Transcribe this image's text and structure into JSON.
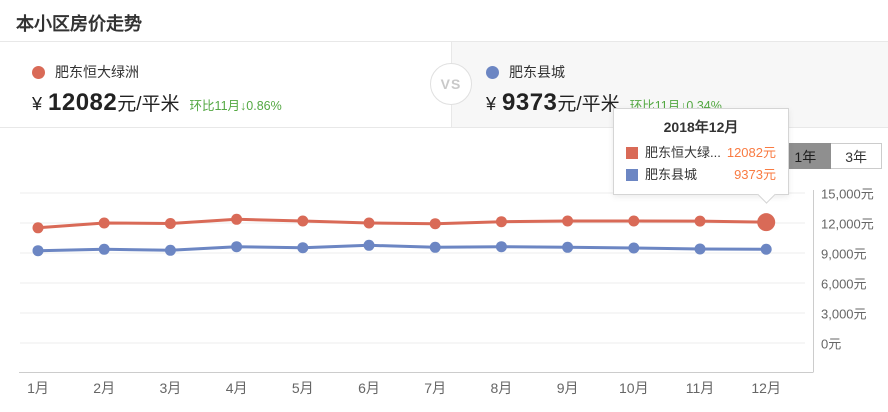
{
  "header": {
    "title": "本小区房价走势"
  },
  "compare": {
    "vs_label": "VS",
    "left": {
      "name": "肥东恒大绿洲",
      "currency": "¥",
      "price": "12082",
      "unit": "元/平米",
      "mom": "环比11月↓0.86%"
    },
    "right": {
      "name": "肥东县城",
      "currency": "¥",
      "price": "9373",
      "unit": "元/平米",
      "mom": "环比11月↓0.34%"
    }
  },
  "tabs": [
    {
      "key": "1y",
      "label": "1年",
      "selected": true
    },
    {
      "key": "3y",
      "label": "3年",
      "selected": false
    }
  ],
  "tooltip": {
    "title": "2018年12月",
    "rows": [
      {
        "label": "肥东恒大绿...",
        "value": "12082元",
        "color": "#d96a57"
      },
      {
        "label": "肥东县城",
        "value": "9373元",
        "color": "#6c86c3"
      }
    ]
  },
  "chart_data": {
    "type": "line",
    "title": "本小区房价走势",
    "x": [
      "1月",
      "2月",
      "3月",
      "4月",
      "5月",
      "6月",
      "7月",
      "8月",
      "9月",
      "10月",
      "11月",
      "12月"
    ],
    "series": [
      {
        "name": "肥东恒大绿洲",
        "color": "#d96a57",
        "values": [
          11520,
          12000,
          11950,
          12370,
          12200,
          12000,
          11930,
          12130,
          12200,
          12200,
          12187,
          12082
        ]
      },
      {
        "name": "肥东县城",
        "color": "#6c86c3",
        "values": [
          9230,
          9370,
          9270,
          9630,
          9530,
          9770,
          9570,
          9630,
          9570,
          9500,
          9405,
          9373
        ]
      }
    ],
    "ylim": [
      0,
      15000
    ],
    "y_ticks": [
      0,
      3000,
      6000,
      9000,
      12000,
      15000
    ],
    "y_tick_labels": [
      "0元",
      "3,000元",
      "6,000元",
      "9,000元",
      "12,000元",
      "15,000元"
    ],
    "grid": true,
    "y_axis_position": "right",
    "emphasis": {
      "series_index": 0,
      "point_index": 11
    }
  },
  "colors": {
    "trend_down_green": "#54a843",
    "tooltip_value_orange": "#f97b42",
    "axis_text": "#666666",
    "grid_line": "#ededed"
  }
}
